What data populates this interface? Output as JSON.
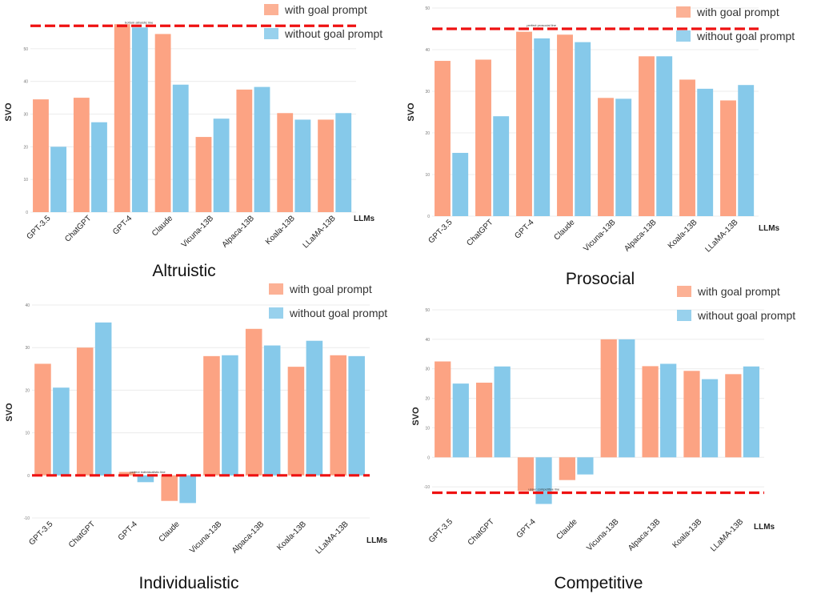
{
  "colors": {
    "with": "#fca383",
    "without": "#86c9ea",
    "ref": "#ee1111",
    "grid": "#ececec"
  },
  "chart_data": [
    {
      "type": "bar",
      "title": "Altruistic",
      "ylabel": "SVO",
      "xlabel": "LLMs",
      "categories": [
        "GPT-3.5",
        "ChatGPT",
        "GPT-4",
        "Claude",
        "Vicuna-13B",
        "Alpaca-13B",
        "Koala-13B",
        "LLaMA-13B"
      ],
      "series": [
        {
          "name": "with goal prompt",
          "values": [
            34.5,
            35,
            57.5,
            54.5,
            23,
            37.5,
            30.3,
            28.3
          ]
        },
        {
          "name": "without goal prompt",
          "values": [
            20,
            27.5,
            56.5,
            39,
            28.6,
            38.3,
            28.3,
            30.3
          ]
        }
      ],
      "ylim": [
        0,
        60
      ],
      "yticks": [
        0,
        10,
        20,
        30,
        40,
        50
      ],
      "ref_line": {
        "value": 57,
        "label": "bottom altruistic line"
      },
      "legend": "top-right",
      "grid": true
    },
    {
      "type": "bar",
      "title": "Prosocial",
      "ylabel": "SVO",
      "xlabel": "LLMs",
      "categories": [
        "GPT-3.5",
        "ChatGPT",
        "GPT-4",
        "Claude",
        "Vicuna-13B",
        "Alpaca-13B",
        "Koala-13B",
        "LLaMA-13B"
      ],
      "series": [
        {
          "name": "with goal prompt",
          "values": [
            37.3,
            37.6,
            44.3,
            43.6,
            28.4,
            38.4,
            32.8,
            27.8
          ]
        },
        {
          "name": "without goal prompt",
          "values": [
            15.2,
            24,
            42.7,
            41.8,
            28.2,
            38.4,
            30.6,
            31.5
          ]
        }
      ],
      "ylim": [
        0,
        50
      ],
      "yticks": [
        0,
        10,
        20,
        30,
        40,
        50
      ],
      "ref_line": {
        "value": 45,
        "label": "perfect prosocial line"
      },
      "legend": "top-right",
      "grid": true
    },
    {
      "type": "bar",
      "title": "Individualistic",
      "ylabel": "SVO",
      "xlabel": "LLMs",
      "categories": [
        "GPT-3.5",
        "ChatGPT",
        "GPT-4",
        "Claude",
        "Vicuna-13B",
        "Alpaca-13B",
        "Koala-13B",
        "LLaMA-13B"
      ],
      "series": [
        {
          "name": "with goal prompt",
          "values": [
            26.2,
            30,
            0.8,
            -6,
            28,
            34.4,
            25.5,
            28.2
          ]
        },
        {
          "name": "without goal prompt",
          "values": [
            20.6,
            35.9,
            -1.6,
            -6.5,
            28.2,
            30.5,
            31.6,
            28
          ]
        }
      ],
      "ylim": [
        -10,
        40
      ],
      "yticks": [
        -10,
        0,
        10,
        20,
        30,
        40
      ],
      "ref_line": {
        "value": 0,
        "label": "perfect individualistic line"
      },
      "legend": "top-right",
      "grid": true
    },
    {
      "type": "bar",
      "title": "Competitive",
      "ylabel": "SVO",
      "xlabel": "LLMs",
      "categories": [
        "GPT-3.5",
        "ChatGPT",
        "GPT-4",
        "Claude",
        "Vicuna-13B",
        "Alpaca-13B",
        "Koala-13B",
        "LLaMA-13B"
      ],
      "series": [
        {
          "name": "with goal prompt",
          "values": [
            32.5,
            25.3,
            -11.4,
            -7.7,
            40,
            30.9,
            29.3,
            28.2
          ]
        },
        {
          "name": "without goal prompt",
          "values": [
            25,
            30.8,
            -15.8,
            -5.8,
            40,
            31.7,
            26.5,
            30.8
          ]
        }
      ],
      "ylim": [
        -20,
        50
      ],
      "yticks": [
        -10,
        0,
        10,
        20,
        30,
        40,
        50
      ],
      "ref_line": {
        "value": -12,
        "label": "upper competitive line"
      },
      "legend": "top-right",
      "grid": true
    }
  ]
}
